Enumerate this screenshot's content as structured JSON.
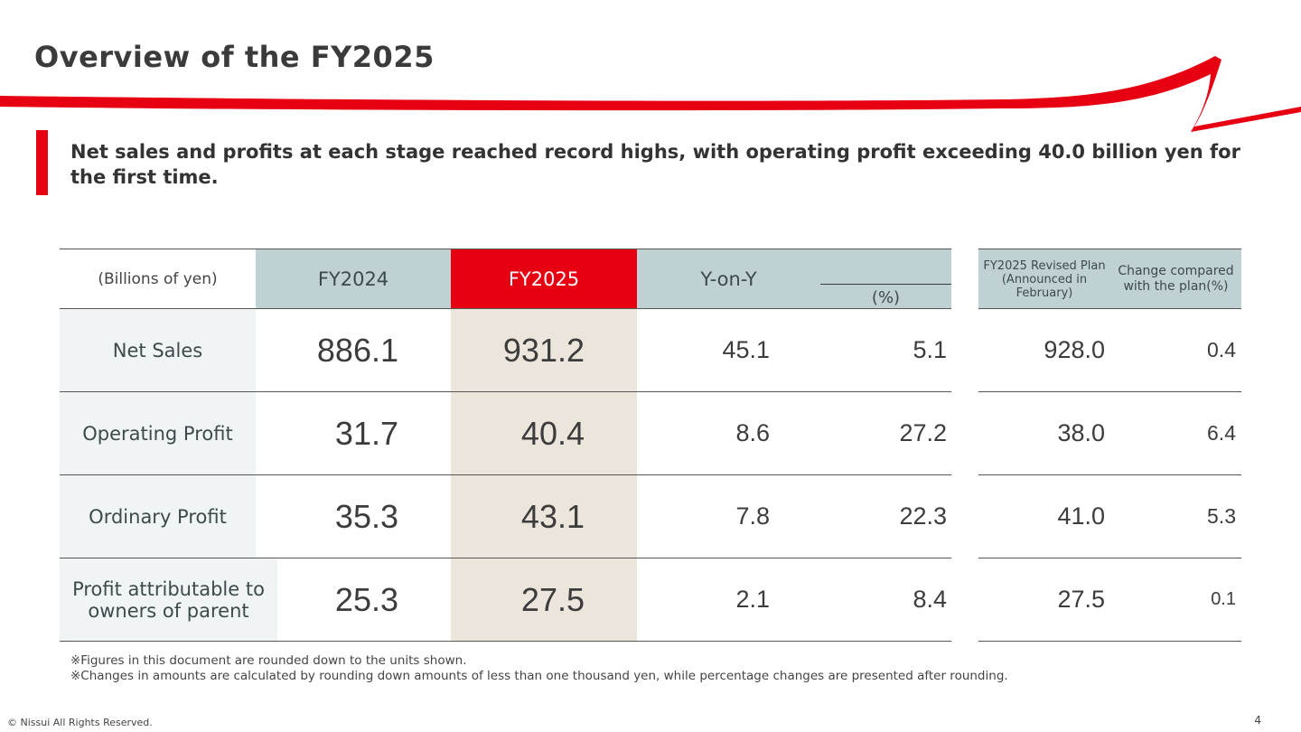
{
  "slide": {
    "title": "Overview of the FY2025",
    "headline": "Net sales and profits at each stage reached record highs, with operating profit exceeding 40.0 billion yen for the first time.",
    "accent_color": "#e60012"
  },
  "table": {
    "headers": {
      "unit": "(Billions of yen)",
      "fy2024": "FY2024",
      "fy2025": "FY2025",
      "yoy": "Y-on-Y",
      "yoy_pct": "(%)",
      "plan": "FY2025 Revised Plan (Announced in February)",
      "change": "Change compared with the plan(%)"
    },
    "rows": [
      {
        "label": "Net Sales",
        "fy2024": "886.1",
        "fy2025": "931.2",
        "yoy": "45.1",
        "yoy_pct": "5.1",
        "plan": "928.0",
        "change": "0.4"
      },
      {
        "label": "Operating Profit",
        "fy2024": "31.7",
        "fy2025": "40.4",
        "yoy": "8.6",
        "yoy_pct": "27.2",
        "plan": "38.0",
        "change": "6.4"
      },
      {
        "label": "Ordinary Profit",
        "fy2024": "35.3",
        "fy2025": "43.1",
        "yoy": "7.8",
        "yoy_pct": "22.3",
        "plan": "41.0",
        "change": "5.3"
      },
      {
        "label": "Profit attributable to owners of parent",
        "fy2024": "25.3",
        "fy2025": "27.5",
        "yoy": "2.1",
        "yoy_pct": "8.4",
        "plan": "27.5",
        "change": "0.1"
      }
    ]
  },
  "notes": [
    "※Figures in this document are rounded down to the units shown.",
    "※Changes in amounts are calculated by rounding down amounts of less than one thousand yen, while percentage changes are presented after rounding."
  ],
  "footer": {
    "copyright": "© Nissui All Rights Reserved.",
    "page_number": "4"
  }
}
